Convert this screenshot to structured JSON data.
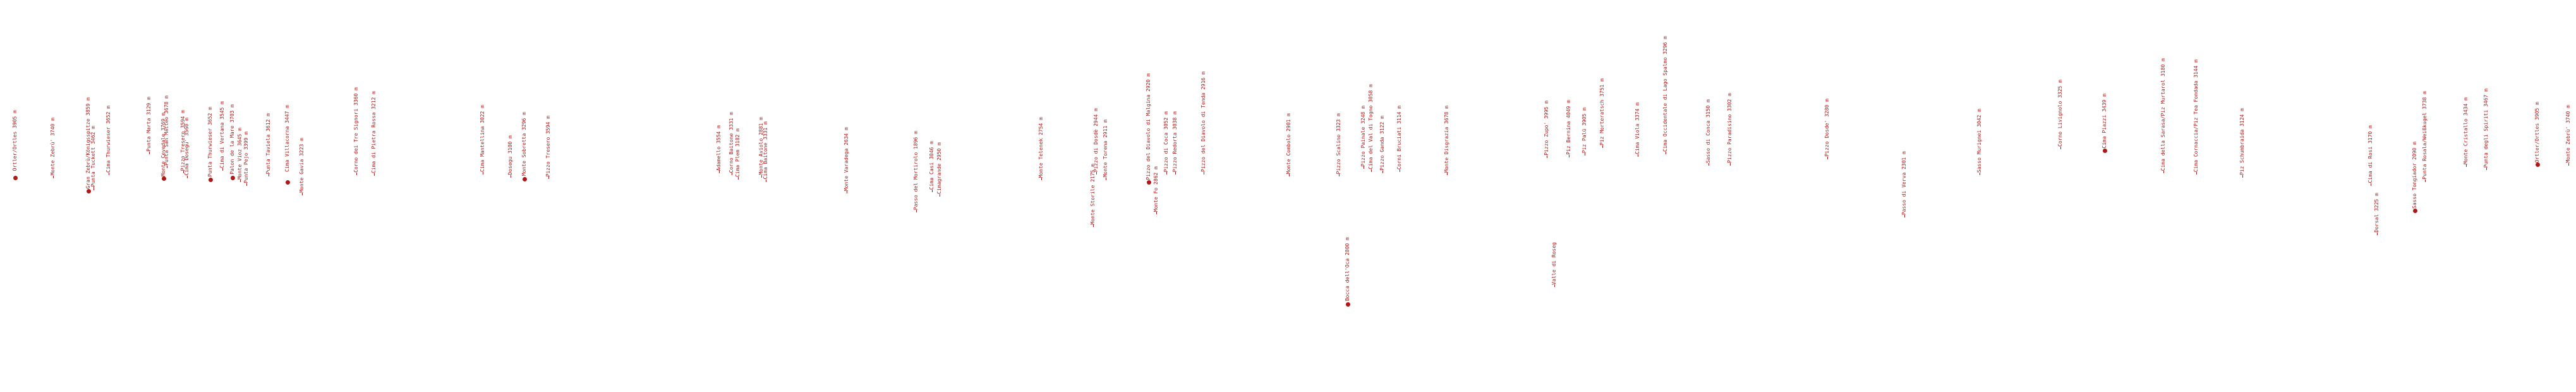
{
  "peaks": [
    {
      "name": "Ortler/Ortles 3905 m"
    },
    {
      "name": "Monte Zebrù' 3740 m"
    },
    {
      "name": "Gran Zebrù/Königsspitze 3859 m"
    },
    {
      "name": "Punta Tuckett 3462 m"
    },
    {
      "name": "Cima Thurwieser 3652 m"
    },
    {
      "name": "Punta Marta 3129 m"
    },
    {
      "name": "Monte Cevedale 3769 m"
    },
    {
      "name": "Punta San Matteo 3678 m"
    },
    {
      "name": "Pizzo Tresero 3594 m"
    },
    {
      "name": "Cima Dosegu' 3560 m"
    },
    {
      "name": "Punta Thurwieser 3652 m"
    },
    {
      "name": "Cima di Vertana 3545 m"
    },
    {
      "name": "Palon de la Mare 3703 m"
    },
    {
      "name": "Monte Vioz 3645 m"
    },
    {
      "name": "Punta Pejo 3399 m"
    },
    {
      "name": "Punta Taviela 3612 m"
    },
    {
      "name": "Cima Villacorna 3447 m"
    },
    {
      "name": "Monte Gavia 3223 m"
    },
    {
      "name": "Corno dei Tre Signori 3360 m"
    },
    {
      "name": "Cima di Pietra Rossa 3212 m"
    },
    {
      "name": "Cima Mantellina 3022 m"
    },
    {
      "name": "Dosegu 3100 m"
    },
    {
      "name": "Monte Sobretta 3296 m"
    },
    {
      "name": "Pizzo Tresero 3594 m"
    },
    {
      "name": "Adamello 3554 m"
    },
    {
      "name": "Corno Baitone 3331 m"
    },
    {
      "name": "Cima Plem 3182 m"
    },
    {
      "name": "Monte Aviolo 2881 m"
    },
    {
      "name": "Cima Baitone 3331 m"
    },
    {
      "name": "Monte Varadega 2634 m"
    },
    {
      "name": "Passo del Mortirolo 1896 m"
    },
    {
      "name": "Cima Casi 3046 m"
    },
    {
      "name": "Cimagrande 2950 m"
    },
    {
      "name": "Monte Telenek 2754 m"
    },
    {
      "name": "Monte Storile 2175 m"
    },
    {
      "name": "Pizzo di Dosdè 2944 m"
    },
    {
      "name": "Monte Torena 2911 m"
    },
    {
      "name": "Pizzo del Diavolo di Malgina 2920 m"
    },
    {
      "name": "Monte Fo 2862 m"
    },
    {
      "name": "Pizzo di Coca 3052 m"
    },
    {
      "name": "Pizzo Redorta 3038 m"
    },
    {
      "name": "Pizzo del Diavolo di Tenda 2916 m"
    },
    {
      "name": "Monte Combolo 2901 m"
    },
    {
      "name": "Pizzo Scalino 3323 m"
    },
    {
      "name": "Bocca dell'Oca 2800 m"
    },
    {
      "name": "Pizzo Painale 3248 m"
    },
    {
      "name": "Cima del Val di Togno 3058 m"
    },
    {
      "name": "Pizzo Ganda 3122 m"
    },
    {
      "name": "Corni Bruciati 3114 m"
    },
    {
      "name": "Monte Disgrazia 3678 m"
    },
    {
      "name": "Pizzo Zupo' 3995 m"
    },
    {
      "name": "Valle di Roseg"
    },
    {
      "name": "Piz Bernina 4049 m"
    },
    {
      "name": "Piz Palü 3905 m"
    },
    {
      "name": "Piz Morteratsch 3751 m"
    },
    {
      "name": "Cima Viola 3374 m"
    },
    {
      "name": "Cima Occidentale di Lago Spalmo 3296 m"
    },
    {
      "name": "Sasso di Conca 3150 m"
    },
    {
      "name": "Pizzo Paradisino 3302 m"
    },
    {
      "name": "Pizzo Dosde' 3280 m"
    },
    {
      "name": "Passo di Verva 2301 m"
    },
    {
      "name": "Sasso Murignei 3042 m"
    },
    {
      "name": "Corno Livignolo 3325 m"
    },
    {
      "name": "Cima Piazzi 3439 m"
    },
    {
      "name": "Cima della Sarasa/Piz Murtarol 3180 m"
    },
    {
      "name": "Cima Cornaccia/Piz Tea Fondada 3144 m"
    },
    {
      "name": "Piz Schumbraida 3124 m"
    },
    {
      "name": "Cima di Rosi 3170 m"
    },
    {
      "name": "Dorsal 3225 m"
    },
    {
      "name": "Sasso Tongiador 2090 m"
    },
    {
      "name": "Punta Rosala/Weißkugel 3738 m"
    },
    {
      "name": "Monte Cristallo 3434 m"
    },
    {
      "name": "Punta degli Spiriti 3467 m"
    },
    {
      "name": "Ortler/Ortles 3905 m"
    },
    {
      "name": "Monte Zebrù' 3740 m"
    }
  ]
}
